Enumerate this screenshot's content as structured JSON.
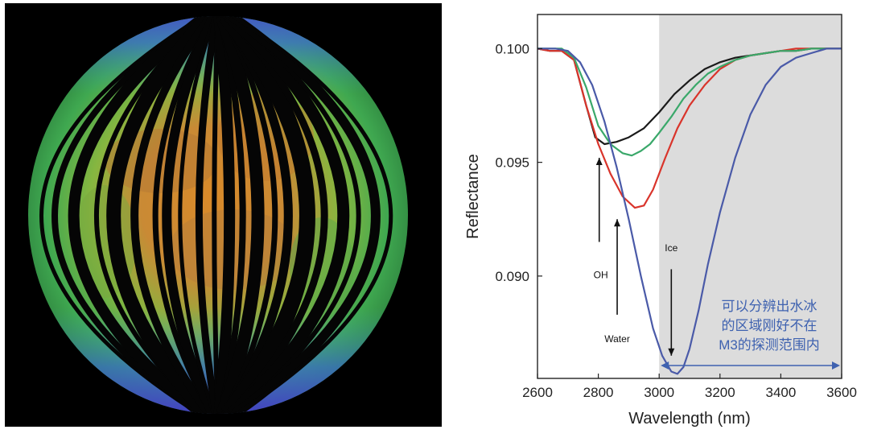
{
  "figure": {
    "left_panel": {
      "image": "moon-globe-mineralogy-map-orbits"
    },
    "colors": {
      "background": "#ffffff",
      "shade": "#dcdcdc",
      "axis": "#222222",
      "note": "#3f62b0"
    }
  },
  "chart_data": {
    "type": "line",
    "title": "",
    "xlabel": "Wavelength (nm)",
    "ylabel": "Reflectance",
    "xlim": [
      2600,
      3600
    ],
    "ylim": [
      0.0855,
      0.1015
    ],
    "xticks": [
      2600,
      2800,
      3000,
      3200,
      3400,
      3600
    ],
    "yticks": [
      0.09,
      0.095,
      0.1
    ],
    "ytick_labels": [
      "0.090",
      "0.095",
      "0.100"
    ],
    "shaded_region": [
      3000,
      3600
    ],
    "grid": false,
    "series": [
      {
        "color": "#1a1a1a",
        "x": [
          2600,
          2640,
          2680,
          2720,
          2760,
          2790,
          2820,
          2860,
          2900,
          2950,
          3000,
          3050,
          3100,
          3150,
          3200,
          3250,
          3300,
          3350,
          3400,
          3450,
          3500,
          3550,
          3600
        ],
        "y": [
          0.1,
          0.0999,
          0.0999,
          0.0995,
          0.0975,
          0.0961,
          0.0958,
          0.0959,
          0.0961,
          0.0965,
          0.0972,
          0.098,
          0.0986,
          0.0991,
          0.0994,
          0.0996,
          0.0997,
          0.0998,
          0.0999,
          0.0999,
          0.1,
          0.1,
          0.1
        ]
      },
      {
        "color": "#d9342b",
        "x": [
          2600,
          2640,
          2680,
          2720,
          2760,
          2800,
          2840,
          2880,
          2920,
          2950,
          2980,
          3020,
          3060,
          3100,
          3150,
          3200,
          3250,
          3300,
          3350,
          3400,
          3450,
          3500,
          3550,
          3600
        ],
        "y": [
          0.1,
          0.0999,
          0.0999,
          0.0995,
          0.0975,
          0.0958,
          0.0945,
          0.0935,
          0.093,
          0.0931,
          0.0938,
          0.0952,
          0.0965,
          0.0975,
          0.0984,
          0.0991,
          0.0995,
          0.0997,
          0.0998,
          0.0999,
          0.1,
          0.1,
          0.1,
          0.1
        ]
      },
      {
        "color": "#3aa86a",
        "x": [
          2600,
          2640,
          2680,
          2720,
          2760,
          2800,
          2840,
          2880,
          2910,
          2940,
          2970,
          3000,
          3040,
          3080,
          3120,
          3160,
          3200,
          3250,
          3300,
          3350,
          3400,
          3450,
          3500,
          3550,
          3600
        ],
        "y": [
          0.1,
          0.1,
          0.1,
          0.0996,
          0.0983,
          0.0966,
          0.0958,
          0.0954,
          0.0953,
          0.0955,
          0.0958,
          0.0963,
          0.097,
          0.0978,
          0.0984,
          0.0989,
          0.0992,
          0.0995,
          0.0997,
          0.0998,
          0.0999,
          0.0999,
          0.1,
          0.1,
          0.1
        ]
      },
      {
        "color": "#4a5aa8",
        "x": [
          2600,
          2660,
          2700,
          2740,
          2780,
          2820,
          2860,
          2900,
          2940,
          2980,
          3010,
          3040,
          3060,
          3080,
          3100,
          3130,
          3160,
          3200,
          3250,
          3300,
          3350,
          3400,
          3450,
          3500,
          3550,
          3600
        ],
        "y": [
          0.1,
          0.1,
          0.0999,
          0.0994,
          0.0984,
          0.0968,
          0.0948,
          0.0925,
          0.09,
          0.0877,
          0.0865,
          0.0858,
          0.0857,
          0.086,
          0.0868,
          0.0885,
          0.0905,
          0.0928,
          0.0952,
          0.0971,
          0.0984,
          0.0992,
          0.0996,
          0.0998,
          0.1,
          0.1
        ]
      }
    ],
    "annotations": [
      {
        "text": "OH",
        "label_x": 2808,
        "label_y": 0.0899,
        "arrow_from": [
          2803,
          0.0915
        ],
        "arrow_to": [
          2803,
          0.0952
        ]
      },
      {
        "text": "Water",
        "label_x": 2862,
        "label_y": 0.0871,
        "arrow_from": [
          2862,
          0.0883
        ],
        "arrow_to": [
          2862,
          0.0925
        ]
      },
      {
        "text": "Ice",
        "label_x": 3040,
        "label_y": 0.0911,
        "arrow_from": [
          3040,
          0.0903
        ],
        "arrow_to": [
          3040,
          0.0865
        ]
      }
    ],
    "note_lines": [
      "可以分辨出水冰",
      "的区域刚好不在",
      "M3的探测范围内"
    ],
    "range_arrow": [
      3000,
      3600
    ]
  }
}
